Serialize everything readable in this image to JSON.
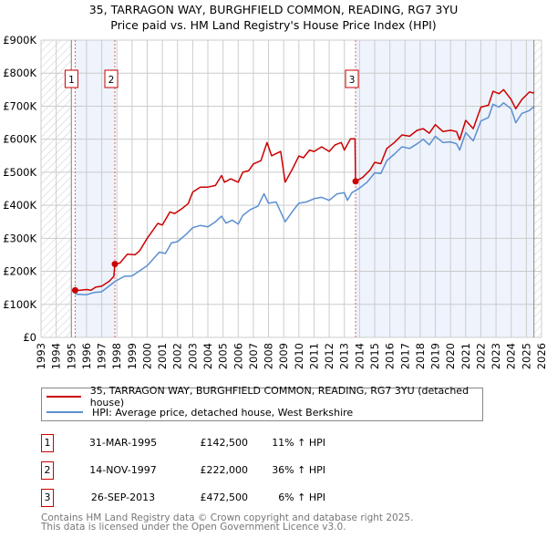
{
  "title_line1": "35, TARRAGON WAY, BURGHFIELD COMMON, READING, RG7 3YU",
  "title_line2": "Price paid vs. HM Land Registry's House Price Index (HPI)",
  "legend": {
    "property": "35, TARRAGON WAY, BURGHFIELD COMMON, READING, RG7 3YU (detached house)",
    "hpi": "HPI: Average price, detached house, West Berkshire"
  },
  "sales": [
    {
      "num": "1",
      "date": "31-MAR-1995",
      "price": "£142,500",
      "hpi": "11% ↑ HPI"
    },
    {
      "num": "2",
      "date": "14-NOV-1997",
      "price": "£222,000",
      "hpi": "36% ↑ HPI"
    },
    {
      "num": "3",
      "date": "26-SEP-2013",
      "price": "£472,500",
      "hpi": "6% ↑ HPI"
    }
  ],
  "footer": {
    "line1": "Contains HM Land Registry data © Crown copyright and database right 2025.",
    "line2": "This data is licensed under the Open Government Licence v3.0."
  },
  "chart_data": {
    "type": "line",
    "xlim": [
      1993,
      2026
    ],
    "ylim": [
      0,
      900000
    ],
    "yticks": [
      0,
      100000,
      200000,
      300000,
      400000,
      500000,
      600000,
      700000,
      800000,
      900000
    ],
    "ytick_labels": [
      "£0",
      "£100K",
      "£200K",
      "£300K",
      "£400K",
      "£500K",
      "£600K",
      "£700K",
      "£800K",
      "£900K"
    ],
    "xticks": [
      "1993",
      "1994",
      "1995",
      "1996",
      "1997",
      "1998",
      "1999",
      "2000",
      "2001",
      "2002",
      "2003",
      "2004",
      "2005",
      "2006",
      "2007",
      "2008",
      "2009",
      "2010",
      "2011",
      "2012",
      "2013",
      "2014",
      "2015",
      "2016",
      "2017",
      "2018",
      "2019",
      "2020",
      "2021",
      "2022",
      "2023",
      "2024",
      "2025",
      "2026"
    ],
    "grid": true,
    "colors": {
      "property": "#cc0000",
      "hpi": "#5b8fd0",
      "shade": "#eef3fc",
      "marker_border": "#cc0000"
    },
    "data_range": [
      1995.0,
      2025.5
    ],
    "sale_points": [
      {
        "label": "1",
        "x": 1995.25,
        "y": 142500
      },
      {
        "label": "2",
        "x": 1997.87,
        "y": 222000
      },
      {
        "label": "3",
        "x": 2013.74,
        "y": 472500
      }
    ],
    "series": [
      {
        "name": "property",
        "points": [
          [
            1995.25,
            142500
          ],
          [
            1995.6,
            143000
          ],
          [
            1996.0,
            145000
          ],
          [
            1996.3,
            143000
          ],
          [
            1996.6,
            152000
          ],
          [
            1997.0,
            155000
          ],
          [
            1997.5,
            170000
          ],
          [
            1997.8,
            185000
          ],
          [
            1997.87,
            222000
          ],
          [
            1998.2,
            225000
          ],
          [
            1998.7,
            252000
          ],
          [
            1999.2,
            250000
          ],
          [
            1999.5,
            262000
          ],
          [
            2000.0,
            300000
          ],
          [
            2000.7,
            345000
          ],
          [
            2001.0,
            340000
          ],
          [
            2001.5,
            380000
          ],
          [
            2001.8,
            375000
          ],
          [
            2002.3,
            390000
          ],
          [
            2002.7,
            405000
          ],
          [
            2003.0,
            440000
          ],
          [
            2003.5,
            455000
          ],
          [
            2004.0,
            455000
          ],
          [
            2004.5,
            460000
          ],
          [
            2004.9,
            490000
          ],
          [
            2005.1,
            470000
          ],
          [
            2005.5,
            480000
          ],
          [
            2006.0,
            470000
          ],
          [
            2006.3,
            500000
          ],
          [
            2006.7,
            505000
          ],
          [
            2007.0,
            525000
          ],
          [
            2007.5,
            535000
          ],
          [
            2007.9,
            590000
          ],
          [
            2008.2,
            550000
          ],
          [
            2008.8,
            563000
          ],
          [
            2009.1,
            470000
          ],
          [
            2009.6,
            512000
          ],
          [
            2010.0,
            549000
          ],
          [
            2010.3,
            544000
          ],
          [
            2010.7,
            567000
          ],
          [
            2011.0,
            563000
          ],
          [
            2011.5,
            577000
          ],
          [
            2012.0,
            563000
          ],
          [
            2012.4,
            583000
          ],
          [
            2012.8,
            590000
          ],
          [
            2013.0,
            567000
          ],
          [
            2013.4,
            601000
          ],
          [
            2013.7,
            601000
          ],
          [
            2013.74,
            472500
          ],
          [
            2014.2,
            484000
          ],
          [
            2014.7,
            507000
          ],
          [
            2015.0,
            530000
          ],
          [
            2015.4,
            526000
          ],
          [
            2015.8,
            572000
          ],
          [
            2016.3,
            590000
          ],
          [
            2016.8,
            613000
          ],
          [
            2017.3,
            609000
          ],
          [
            2017.8,
            627000
          ],
          [
            2018.2,
            632000
          ],
          [
            2018.6,
            618000
          ],
          [
            2019.0,
            644000
          ],
          [
            2019.5,
            623000
          ],
          [
            2020.0,
            627000
          ],
          [
            2020.4,
            623000
          ],
          [
            2020.6,
            598000
          ],
          [
            2021.0,
            657000
          ],
          [
            2021.5,
            632000
          ],
          [
            2022.0,
            697000
          ],
          [
            2022.5,
            703000
          ],
          [
            2022.8,
            745000
          ],
          [
            2023.2,
            738000
          ],
          [
            2023.5,
            750000
          ],
          [
            2024.0,
            720000
          ],
          [
            2024.3,
            692000
          ],
          [
            2024.7,
            720000
          ],
          [
            2025.2,
            743000
          ],
          [
            2025.5,
            740000
          ]
        ]
      },
      {
        "name": "hpi",
        "points": [
          [
            1995.25,
            131000
          ],
          [
            1996.0,
            129000
          ],
          [
            1996.5,
            136000
          ],
          [
            1997.0,
            138000
          ],
          [
            1997.9,
            170000
          ],
          [
            1998.5,
            185000
          ],
          [
            1999.0,
            186000
          ],
          [
            2000.0,
            217000
          ],
          [
            2000.8,
            258000
          ],
          [
            2001.2,
            254000
          ],
          [
            2001.6,
            286000
          ],
          [
            2002.0,
            290000
          ],
          [
            2002.5,
            309000
          ],
          [
            2003.0,
            332000
          ],
          [
            2003.5,
            339000
          ],
          [
            2004.0,
            335000
          ],
          [
            2004.5,
            350000
          ],
          [
            2004.9,
            367000
          ],
          [
            2005.2,
            346000
          ],
          [
            2005.6,
            355000
          ],
          [
            2006.0,
            343000
          ],
          [
            2006.3,
            369000
          ],
          [
            2006.8,
            387000
          ],
          [
            2007.3,
            397000
          ],
          [
            2007.7,
            435000
          ],
          [
            2008.0,
            406000
          ],
          [
            2008.5,
            410000
          ],
          [
            2009.1,
            350000
          ],
          [
            2009.6,
            383000
          ],
          [
            2010.0,
            406000
          ],
          [
            2010.5,
            410000
          ],
          [
            2011.0,
            420000
          ],
          [
            2011.5,
            424000
          ],
          [
            2012.0,
            415000
          ],
          [
            2012.5,
            434000
          ],
          [
            2013.0,
            438000
          ],
          [
            2013.2,
            415000
          ],
          [
            2013.5,
            438000
          ],
          [
            2014.0,
            452000
          ],
          [
            2014.5,
            470000
          ],
          [
            2015.0,
            498000
          ],
          [
            2015.4,
            496000
          ],
          [
            2015.8,
            535000
          ],
          [
            2016.3,
            555000
          ],
          [
            2016.8,
            577000
          ],
          [
            2017.3,
            572000
          ],
          [
            2017.8,
            586000
          ],
          [
            2018.2,
            600000
          ],
          [
            2018.6,
            583000
          ],
          [
            2019.0,
            609000
          ],
          [
            2019.5,
            590000
          ],
          [
            2020.0,
            592000
          ],
          [
            2020.4,
            586000
          ],
          [
            2020.6,
            567000
          ],
          [
            2021.0,
            620000
          ],
          [
            2021.5,
            595000
          ],
          [
            2022.0,
            655000
          ],
          [
            2022.5,
            666000
          ],
          [
            2022.8,
            706000
          ],
          [
            2023.2,
            697000
          ],
          [
            2023.5,
            710000
          ],
          [
            2024.0,
            692000
          ],
          [
            2024.3,
            650000
          ],
          [
            2024.7,
            678000
          ],
          [
            2025.2,
            687000
          ],
          [
            2025.5,
            699000
          ]
        ]
      }
    ]
  }
}
